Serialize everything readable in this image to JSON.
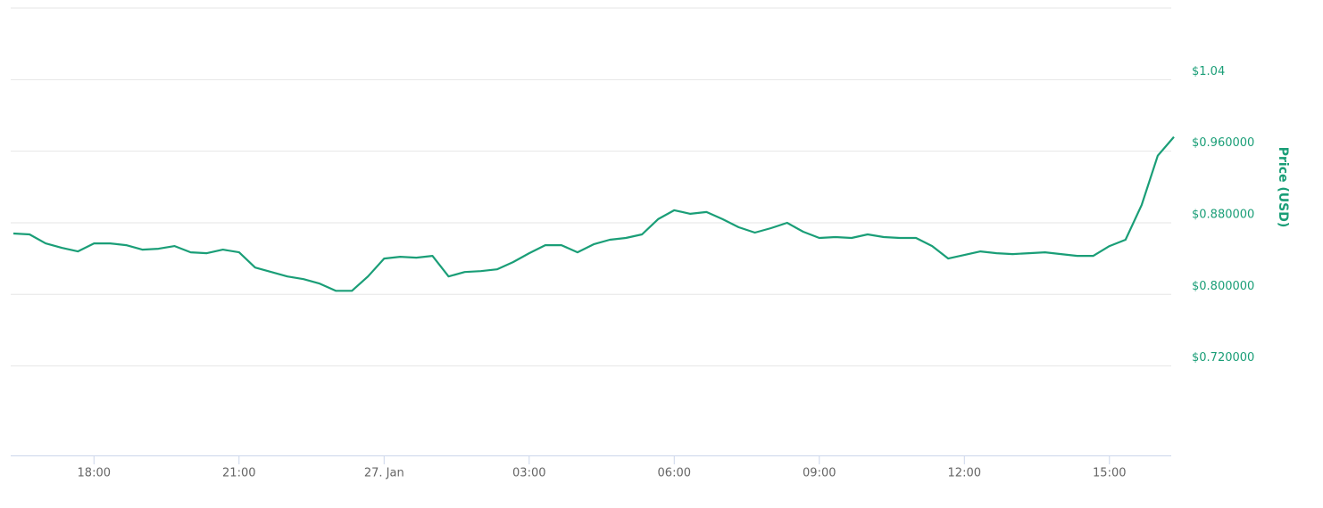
{
  "chart_data": {
    "type": "line",
    "y_axis_label": "Price (USD)",
    "categories": [
      null,
      null,
      null,
      null,
      null,
      "18:00",
      null,
      null,
      null,
      null,
      null,
      null,
      null,
      null,
      "21:00",
      null,
      null,
      null,
      null,
      null,
      null,
      null,
      null,
      "27. Jan",
      null,
      null,
      null,
      null,
      null,
      null,
      null,
      null,
      "03:00",
      null,
      null,
      null,
      null,
      null,
      null,
      null,
      null,
      "06:00",
      null,
      null,
      null,
      null,
      null,
      null,
      null,
      null,
      "09:00",
      null,
      null,
      null,
      null,
      null,
      null,
      null,
      null,
      "12:00",
      null,
      null,
      null,
      null,
      null,
      null,
      null,
      null,
      "15:00",
      null,
      null,
      null,
      null
    ],
    "series": [
      {
        "name": "Price",
        "color": "#1a9e77",
        "values": [
          0.868,
          0.867,
          0.857,
          0.852,
          0.848,
          0.857,
          0.857,
          0.855,
          0.85,
          0.851,
          0.854,
          0.847,
          0.846,
          0.85,
          0.847,
          0.83,
          0.825,
          0.82,
          0.817,
          0.812,
          0.804,
          0.804,
          0.82,
          0.84,
          0.842,
          0.841,
          0.843,
          0.82,
          0.825,
          0.826,
          0.828,
          0.836,
          0.846,
          0.855,
          0.855,
          0.847,
          0.856,
          0.861,
          0.863,
          0.867,
          0.884,
          0.894,
          0.89,
          0.892,
          0.884,
          0.875,
          0.869,
          0.874,
          0.88,
          0.87,
          0.863,
          0.864,
          0.863,
          0.867,
          0.864,
          0.863,
          0.863,
          0.854,
          0.84,
          0.844,
          0.848,
          0.846,
          0.845,
          0.846,
          0.847,
          0.845,
          0.843,
          0.843,
          0.854,
          0.861,
          0.9,
          0.955,
          0.976
        ]
      }
    ],
    "ylim": [
      0.62,
      1.12
    ],
    "yticks": [
      {
        "value": 0.72,
        "label": "$0.720000"
      },
      {
        "value": 0.8,
        "label": "$0.800000"
      },
      {
        "value": 0.88,
        "label": "$0.880000"
      },
      {
        "value": 0.96,
        "label": "$0.960000"
      },
      {
        "value": 1.04,
        "label": "$1.04"
      }
    ],
    "grid": true
  }
}
